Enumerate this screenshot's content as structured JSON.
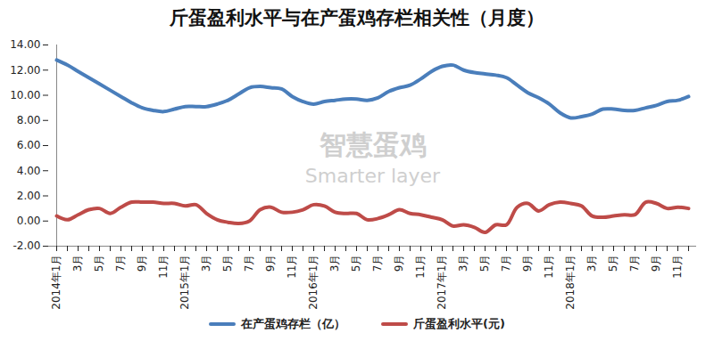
{
  "chart_data": {
    "type": "line",
    "title": "斤蛋盈利水平与在产蛋鸡存栏相关性（月度）",
    "annotations": [
      "智慧蛋鸡",
      "Smarter layer"
    ],
    "categories": [
      "2014年1月",
      null,
      "3月",
      null,
      "5月",
      null,
      "7月",
      null,
      "9月",
      null,
      "11月",
      null,
      "2015年1月",
      null,
      "3月",
      null,
      "5月",
      null,
      "7月",
      null,
      "9月",
      null,
      "11月",
      null,
      "2016年1月",
      null,
      "3月",
      null,
      "5月",
      null,
      "7月",
      null,
      "9月",
      null,
      "11月",
      null,
      "2017年1月",
      null,
      "3月",
      null,
      "5月",
      null,
      "7月",
      null,
      "9月",
      null,
      "11月",
      null,
      "2018年1月",
      null,
      "3月",
      null,
      "5月",
      null,
      "7月",
      null,
      "9月",
      null,
      "11月",
      null
    ],
    "series": [
      {
        "name": "在产蛋鸡存栏（亿）",
        "color": "#4a7ebb",
        "values": [
          12.8,
          12.4,
          11.9,
          11.4,
          10.9,
          10.4,
          9.9,
          9.4,
          9.0,
          8.8,
          8.7,
          8.9,
          9.1,
          9.1,
          9.1,
          9.3,
          9.6,
          10.1,
          10.6,
          10.7,
          10.6,
          10.5,
          9.9,
          9.5,
          9.3,
          9.5,
          9.6,
          9.7,
          9.7,
          9.6,
          9.8,
          10.3,
          10.6,
          10.8,
          11.3,
          11.9,
          12.3,
          12.4,
          12.0,
          11.8,
          11.7,
          11.6,
          11.4,
          10.8,
          10.2,
          9.8,
          9.3,
          8.6,
          8.2,
          8.3,
          8.5,
          8.9,
          8.9,
          8.8,
          8.8,
          9.0,
          9.2,
          9.5,
          9.6,
          9.9
        ]
      },
      {
        "name": "斤蛋盈利水平(元)",
        "color": "#be4b48",
        "values": [
          0.4,
          0.1,
          0.5,
          0.9,
          1.0,
          0.6,
          1.1,
          1.5,
          1.5,
          1.5,
          1.4,
          1.4,
          1.2,
          1.3,
          0.6,
          0.1,
          -0.1,
          -0.2,
          0.0,
          0.9,
          1.1,
          0.7,
          0.7,
          0.9,
          1.3,
          1.2,
          0.7,
          0.6,
          0.6,
          0.1,
          0.2,
          0.5,
          0.9,
          0.6,
          0.5,
          0.3,
          0.1,
          -0.4,
          -0.3,
          -0.5,
          -0.9,
          -0.3,
          -0.3,
          1.1,
          1.4,
          0.8,
          1.3,
          1.5,
          1.4,
          1.2,
          0.4,
          0.3,
          0.4,
          0.5,
          0.5,
          1.5,
          1.4,
          1.0,
          1.1,
          1.0
        ]
      }
    ],
    "ylim": [
      -2,
      14
    ],
    "yticks": [
      {
        "value": -2,
        "label": "-2.00"
      },
      {
        "value": 0,
        "label": "0.00"
      },
      {
        "value": 2,
        "label": "2.00"
      },
      {
        "value": 4,
        "label": "4.00"
      },
      {
        "value": 6,
        "label": "6.00"
      },
      {
        "value": 8,
        "label": "8.00"
      },
      {
        "value": 10,
        "label": "10.00"
      },
      {
        "value": 12,
        "label": "12.00"
      },
      {
        "value": 14,
        "label": "14.00"
      }
    ],
    "grid": false,
    "legend": "bottom"
  }
}
